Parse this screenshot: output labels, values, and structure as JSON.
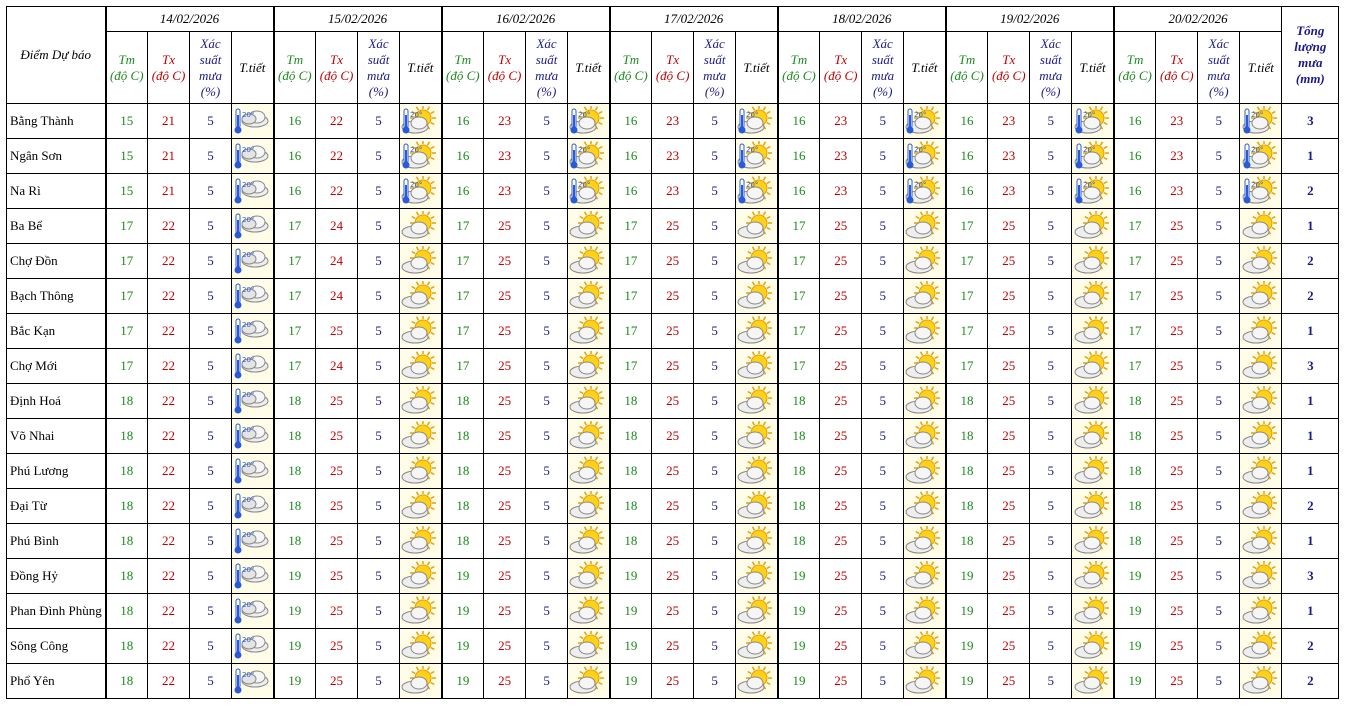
{
  "table": {
    "station_header": "Điểm Dự báo",
    "total_header": "Tổng lượng mưa (mm)",
    "dates": [
      "14/02/2026",
      "15/02/2026",
      "16/02/2026",
      "17/02/2026",
      "18/02/2026",
      "19/02/2026",
      "20/02/2026"
    ],
    "columns": [
      "Tm\n(độ C)",
      "Tx\n(độ C)",
      "Xác\nsuất\nmưa\n(%)",
      "T.tiết"
    ],
    "rows": [
      {
        "station": "Bằng Thành",
        "days": [
          [
            15,
            21,
            5,
            "cloud-thermo"
          ],
          [
            16,
            22,
            5,
            "suncloud-thermo"
          ],
          [
            16,
            23,
            5,
            "suncloud-thermo"
          ],
          [
            16,
            23,
            5,
            "suncloud-thermo"
          ],
          [
            16,
            23,
            5,
            "suncloud-thermo"
          ],
          [
            16,
            23,
            5,
            "suncloud-thermo"
          ],
          [
            16,
            23,
            5,
            "suncloud-thermo"
          ]
        ],
        "total": 3
      },
      {
        "station": "Ngân Sơn",
        "days": [
          [
            15,
            21,
            5,
            "cloud-thermo"
          ],
          [
            16,
            22,
            5,
            "suncloud-thermo"
          ],
          [
            16,
            23,
            5,
            "suncloud-thermo"
          ],
          [
            16,
            23,
            5,
            "suncloud-thermo"
          ],
          [
            16,
            23,
            5,
            "suncloud-thermo"
          ],
          [
            16,
            23,
            5,
            "suncloud-thermo"
          ],
          [
            16,
            23,
            5,
            "suncloud-thermo"
          ]
        ],
        "total": 1
      },
      {
        "station": "Na Rì",
        "days": [
          [
            15,
            21,
            5,
            "cloud-thermo"
          ],
          [
            16,
            22,
            5,
            "suncloud-thermo"
          ],
          [
            16,
            23,
            5,
            "suncloud-thermo"
          ],
          [
            16,
            23,
            5,
            "suncloud-thermo"
          ],
          [
            16,
            23,
            5,
            "suncloud-thermo"
          ],
          [
            16,
            23,
            5,
            "suncloud-thermo"
          ],
          [
            16,
            23,
            5,
            "suncloud-thermo"
          ]
        ],
        "total": 2
      },
      {
        "station": "Ba Bể",
        "days": [
          [
            17,
            22,
            5,
            "cloud-thermo"
          ],
          [
            17,
            24,
            5,
            "suncloud"
          ],
          [
            17,
            25,
            5,
            "suncloud"
          ],
          [
            17,
            25,
            5,
            "suncloud"
          ],
          [
            17,
            25,
            5,
            "suncloud"
          ],
          [
            17,
            25,
            5,
            "suncloud"
          ],
          [
            17,
            25,
            5,
            "suncloud"
          ]
        ],
        "total": 1
      },
      {
        "station": "Chợ Đồn",
        "days": [
          [
            17,
            22,
            5,
            "cloud-thermo"
          ],
          [
            17,
            24,
            5,
            "suncloud"
          ],
          [
            17,
            25,
            5,
            "suncloud"
          ],
          [
            17,
            25,
            5,
            "suncloud"
          ],
          [
            17,
            25,
            5,
            "suncloud"
          ],
          [
            17,
            25,
            5,
            "suncloud"
          ],
          [
            17,
            25,
            5,
            "suncloud"
          ]
        ],
        "total": 2
      },
      {
        "station": "Bạch Thông",
        "days": [
          [
            17,
            22,
            5,
            "cloud-thermo"
          ],
          [
            17,
            24,
            5,
            "suncloud"
          ],
          [
            17,
            25,
            5,
            "suncloud"
          ],
          [
            17,
            25,
            5,
            "suncloud"
          ],
          [
            17,
            25,
            5,
            "suncloud"
          ],
          [
            17,
            25,
            5,
            "suncloud"
          ],
          [
            17,
            25,
            5,
            "suncloud"
          ]
        ],
        "total": 2
      },
      {
        "station": "Bắc Kạn",
        "days": [
          [
            17,
            22,
            5,
            "cloud-thermo"
          ],
          [
            17,
            25,
            5,
            "suncloud"
          ],
          [
            17,
            25,
            5,
            "suncloud"
          ],
          [
            17,
            25,
            5,
            "suncloud"
          ],
          [
            17,
            25,
            5,
            "suncloud"
          ],
          [
            17,
            25,
            5,
            "suncloud"
          ],
          [
            17,
            25,
            5,
            "suncloud"
          ]
        ],
        "total": 1
      },
      {
        "station": "Chợ Mới",
        "days": [
          [
            17,
            22,
            5,
            "cloud-thermo"
          ],
          [
            17,
            24,
            5,
            "suncloud"
          ],
          [
            17,
            25,
            5,
            "suncloud"
          ],
          [
            17,
            25,
            5,
            "suncloud"
          ],
          [
            17,
            25,
            5,
            "suncloud"
          ],
          [
            17,
            25,
            5,
            "suncloud"
          ],
          [
            17,
            25,
            5,
            "suncloud"
          ]
        ],
        "total": 3
      },
      {
        "station": "Định Hoá",
        "days": [
          [
            18,
            22,
            5,
            "cloud-thermo"
          ],
          [
            18,
            25,
            5,
            "suncloud"
          ],
          [
            18,
            25,
            5,
            "suncloud"
          ],
          [
            18,
            25,
            5,
            "suncloud"
          ],
          [
            18,
            25,
            5,
            "suncloud"
          ],
          [
            18,
            25,
            5,
            "suncloud"
          ],
          [
            18,
            25,
            5,
            "suncloud"
          ]
        ],
        "total": 1
      },
      {
        "station": "Võ Nhai",
        "days": [
          [
            18,
            22,
            5,
            "cloud-thermo"
          ],
          [
            18,
            25,
            5,
            "suncloud"
          ],
          [
            18,
            25,
            5,
            "suncloud"
          ],
          [
            18,
            25,
            5,
            "suncloud"
          ],
          [
            18,
            25,
            5,
            "suncloud"
          ],
          [
            18,
            25,
            5,
            "suncloud"
          ],
          [
            18,
            25,
            5,
            "suncloud"
          ]
        ],
        "total": 1
      },
      {
        "station": "Phú Lương",
        "days": [
          [
            18,
            22,
            5,
            "cloud-thermo"
          ],
          [
            18,
            25,
            5,
            "suncloud"
          ],
          [
            18,
            25,
            5,
            "suncloud"
          ],
          [
            18,
            25,
            5,
            "suncloud"
          ],
          [
            18,
            25,
            5,
            "suncloud"
          ],
          [
            18,
            25,
            5,
            "suncloud"
          ],
          [
            18,
            25,
            5,
            "suncloud"
          ]
        ],
        "total": 1
      },
      {
        "station": "Đại Từ",
        "days": [
          [
            18,
            22,
            5,
            "cloud-thermo"
          ],
          [
            18,
            25,
            5,
            "suncloud"
          ],
          [
            18,
            25,
            5,
            "suncloud"
          ],
          [
            18,
            25,
            5,
            "suncloud"
          ],
          [
            18,
            25,
            5,
            "suncloud"
          ],
          [
            18,
            25,
            5,
            "suncloud"
          ],
          [
            18,
            25,
            5,
            "suncloud"
          ]
        ],
        "total": 2
      },
      {
        "station": "Phú Bình",
        "days": [
          [
            18,
            22,
            5,
            "cloud-thermo"
          ],
          [
            18,
            25,
            5,
            "suncloud"
          ],
          [
            18,
            25,
            5,
            "suncloud"
          ],
          [
            18,
            25,
            5,
            "suncloud"
          ],
          [
            18,
            25,
            5,
            "suncloud"
          ],
          [
            18,
            25,
            5,
            "suncloud"
          ],
          [
            18,
            25,
            5,
            "suncloud"
          ]
        ],
        "total": 1
      },
      {
        "station": "Đồng Hỷ",
        "days": [
          [
            18,
            22,
            5,
            "cloud-thermo"
          ],
          [
            19,
            25,
            5,
            "suncloud"
          ],
          [
            19,
            25,
            5,
            "suncloud"
          ],
          [
            19,
            25,
            5,
            "suncloud"
          ],
          [
            19,
            25,
            5,
            "suncloud"
          ],
          [
            19,
            25,
            5,
            "suncloud"
          ],
          [
            19,
            25,
            5,
            "suncloud"
          ]
        ],
        "total": 3
      },
      {
        "station": "Phan Đình Phùng",
        "days": [
          [
            18,
            22,
            5,
            "cloud-thermo"
          ],
          [
            19,
            25,
            5,
            "suncloud"
          ],
          [
            19,
            25,
            5,
            "suncloud"
          ],
          [
            19,
            25,
            5,
            "suncloud"
          ],
          [
            19,
            25,
            5,
            "suncloud"
          ],
          [
            19,
            25,
            5,
            "suncloud"
          ],
          [
            19,
            25,
            5,
            "suncloud"
          ]
        ],
        "total": 1
      },
      {
        "station": "Sông Công",
        "days": [
          [
            18,
            22,
            5,
            "cloud-thermo"
          ],
          [
            19,
            25,
            5,
            "suncloud"
          ],
          [
            19,
            25,
            5,
            "suncloud"
          ],
          [
            19,
            25,
            5,
            "suncloud"
          ],
          [
            19,
            25,
            5,
            "suncloud"
          ],
          [
            19,
            25,
            5,
            "suncloud"
          ],
          [
            19,
            25,
            5,
            "suncloud"
          ]
        ],
        "total": 2
      },
      {
        "station": "Phổ Yên",
        "days": [
          [
            18,
            22,
            5,
            "cloud-thermo"
          ],
          [
            19,
            25,
            5,
            "suncloud"
          ],
          [
            19,
            25,
            5,
            "suncloud"
          ],
          [
            19,
            25,
            5,
            "suncloud"
          ],
          [
            19,
            25,
            5,
            "suncloud"
          ],
          [
            19,
            25,
            5,
            "suncloud"
          ],
          [
            19,
            25,
            5,
            "suncloud"
          ]
        ],
        "total": 2
      }
    ]
  }
}
